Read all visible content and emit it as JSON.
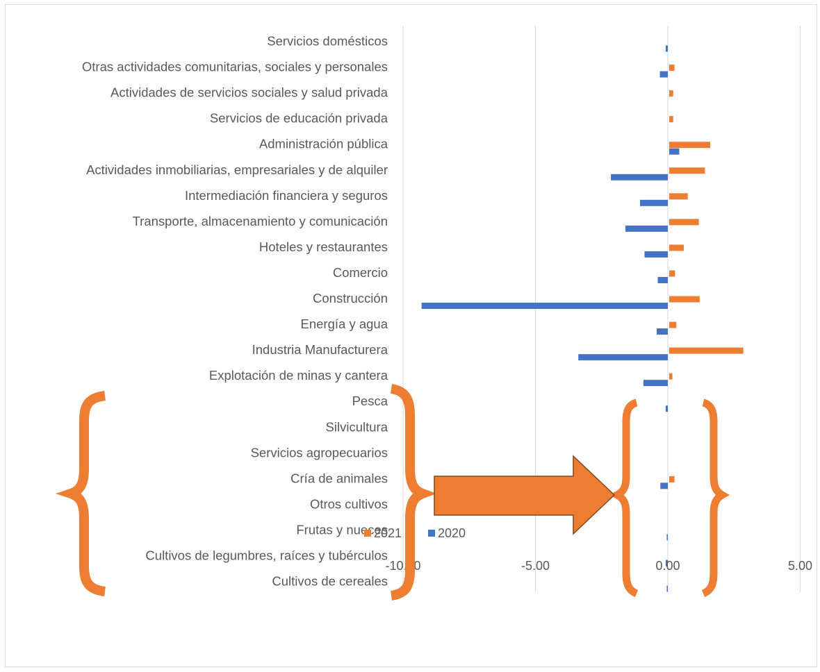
{
  "chart_data": {
    "type": "bar",
    "orientation": "horizontal",
    "categories": [
      "Servicios domésticos",
      "Otras actividades comunitarias, sociales y personales",
      "Actividades de servicios sociales y salud privada",
      "Servicios de educación privada",
      "Administración pública",
      "Actividades inmobiliarias, empresariales y de alquiler",
      "Intermediación financiera y seguros",
      "Transporte, almacenamiento y comunicación",
      "Hoteles y restaurantes",
      "Comercio",
      "Construcción",
      "Energía y agua",
      "Industria Manufacturera",
      "Explotación de minas y cantera",
      "Pesca",
      "Silvicultura",
      "Servicios agropecuarios",
      "Cría de animales",
      "Otros cultivos",
      "Frutas y nueces",
      "Cultivos de legumbres, raíces y tubérculos",
      "Cultivos de cereales"
    ],
    "series": [
      {
        "name": "2021",
        "color": "#ED7D31",
        "values": [
          0,
          0.2,
          0.15,
          0.15,
          1.55,
          1.35,
          0.7,
          1.12,
          0.55,
          0.22,
          1.15,
          0.27,
          2.8,
          0.12,
          0,
          0,
          0,
          0.2,
          0,
          0,
          0,
          0
        ]
      },
      {
        "name": "2020",
        "color": "#4472C4",
        "values": [
          -0.08,
          -0.3,
          0,
          0,
          0.38,
          -2.15,
          -1.05,
          -1.6,
          -0.88,
          -0.38,
          -9.3,
          -0.42,
          -3.38,
          -0.92,
          -0.08,
          0,
          0,
          -0.28,
          0,
          -0.04,
          -0.08,
          -0.04
        ]
      }
    ],
    "xlim": [
      -10,
      5
    ],
    "xticks": [
      "-10.00",
      "-5.00",
      "0.00",
      "5.00"
    ],
    "xtick_values": [
      -10,
      -5,
      0,
      5
    ],
    "grid": "vertical",
    "legend": "bottom",
    "legend_entries": [
      "2021",
      "2020"
    ],
    "annotations": {
      "brace_color": "#ED7D31",
      "arrow_color": "#ED7D31",
      "arrow_border": "#7F4A1E"
    }
  }
}
